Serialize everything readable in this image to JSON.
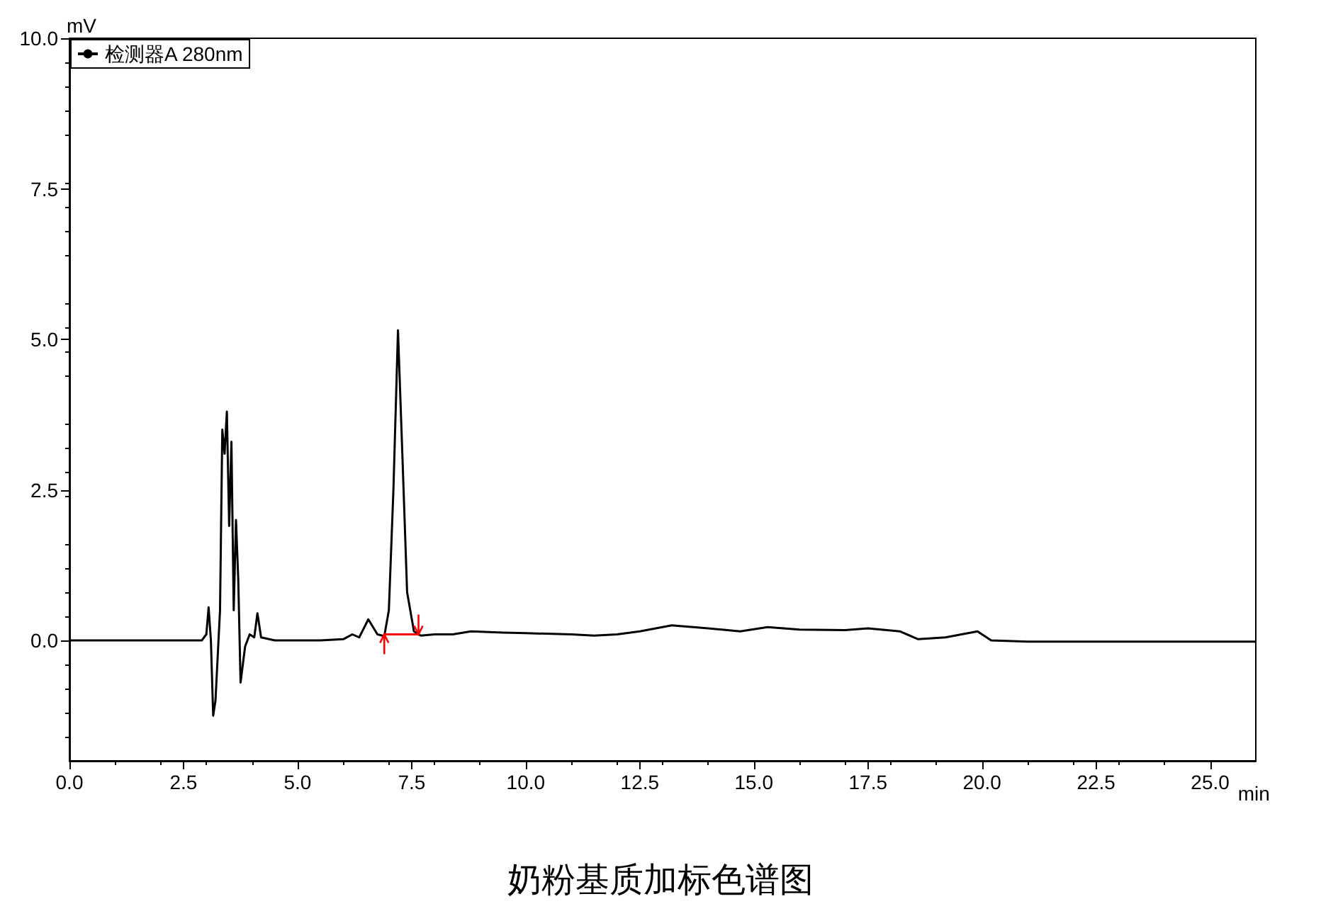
{
  "chart_data": {
    "type": "line",
    "title": "奶粉基质加标色谱图",
    "xlabel": "min",
    "ylabel": "mV",
    "xlim": [
      0,
      26
    ],
    "ylim": [
      -2,
      10
    ],
    "xticks": [
      {
        "value": 0,
        "label": "0.0"
      },
      {
        "value": 2.5,
        "label": "2.5"
      },
      {
        "value": 5,
        "label": "5.0"
      },
      {
        "value": 7.5,
        "label": "7.5"
      },
      {
        "value": 10,
        "label": "10.0"
      },
      {
        "value": 12.5,
        "label": "12.5"
      },
      {
        "value": 15,
        "label": "15.0"
      },
      {
        "value": 17.5,
        "label": "17.5"
      },
      {
        "value": 20,
        "label": "20.0"
      },
      {
        "value": 22.5,
        "label": "22.5"
      },
      {
        "value": 25,
        "label": "25.0"
      }
    ],
    "yticks": [
      {
        "value": 0,
        "label": "0.0"
      },
      {
        "value": 2.5,
        "label": "2.5"
      },
      {
        "value": 5,
        "label": "5.0"
      },
      {
        "value": 7.5,
        "label": "7.5"
      },
      {
        "value": 10,
        "label": "10.0"
      }
    ],
    "grid": false,
    "legend": "top left",
    "marker": "none",
    "line_style": "solid",
    "series": [
      {
        "name": "检测器A 280nm",
        "color": "#000000",
        "x": [
          0,
          2.9,
          3.0,
          3.05,
          3.1,
          3.15,
          3.2,
          3.3,
          3.35,
          3.4,
          3.45,
          3.5,
          3.55,
          3.6,
          3.65,
          3.7,
          3.75,
          3.85,
          3.95,
          4.05,
          4.12,
          4.2,
          4.5,
          5.0,
          5.5,
          6.0,
          6.2,
          6.35,
          6.55,
          6.75,
          6.9,
          7.0,
          7.1,
          7.2,
          7.3,
          7.4,
          7.55,
          7.7,
          8.0,
          8.4,
          8.8,
          9.5,
          10,
          11,
          11.5,
          12,
          12.5,
          13.2,
          14,
          14.7,
          15.3,
          16,
          17,
          17.5,
          18.2,
          18.6,
          19.2,
          19.9,
          20.2,
          21,
          26
        ],
        "values": [
          0,
          0,
          0.1,
          0.55,
          0,
          -1.25,
          -1.0,
          0.5,
          3.5,
          3.1,
          3.8,
          1.9,
          3.3,
          0.5,
          2.0,
          1.0,
          -0.7,
          -0.1,
          0.1,
          0.05,
          0.45,
          0.05,
          0,
          0,
          0,
          0.02,
          0.1,
          0.05,
          0.35,
          0.1,
          0.07,
          0.5,
          2.5,
          5.15,
          3.0,
          0.8,
          0.15,
          0.08,
          0.1,
          0.1,
          0.15,
          0.13,
          0.12,
          0.1,
          0.08,
          0.1,
          0.15,
          0.25,
          0.2,
          0.15,
          0.22,
          0.18,
          0.17,
          0.2,
          0.15,
          0.02,
          0.05,
          0.15,
          0,
          -0.02,
          -0.02
        ]
      },
      {
        "color": "#ff0000",
        "x": [
          6.9,
          7.65
        ],
        "values": [
          0.1,
          0.1
        ]
      }
    ]
  }
}
